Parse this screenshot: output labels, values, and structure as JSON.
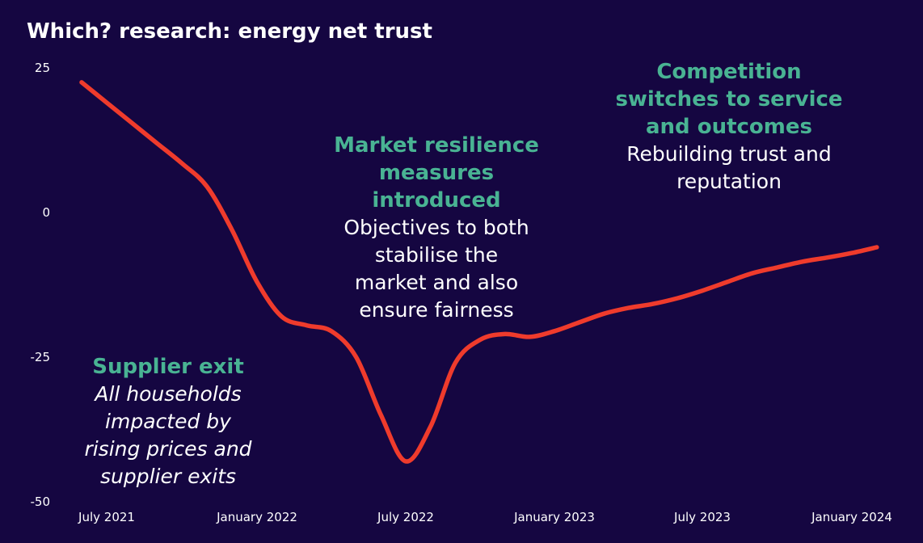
{
  "chart_data": {
    "type": "line",
    "title": "Which? research: energy net trust",
    "xlabel": "",
    "ylabel": "",
    "ylim": [
      -50,
      25
    ],
    "yticks": [
      25,
      0,
      -25,
      -50
    ],
    "xticks": [
      "July 2021",
      "January 2022",
      "July 2022",
      "January 2023",
      "July 2023",
      "January 2024"
    ],
    "grid": false,
    "series": [
      {
        "color": "#ef3b2c",
        "x": [
          "2021-06",
          "2021-07",
          "2021-08",
          "2021-09",
          "2021-10",
          "2021-11",
          "2021-12",
          "2022-01",
          "2022-02",
          "2022-03",
          "2022-04",
          "2022-05",
          "2022-06",
          "2022-07",
          "2022-08",
          "2022-09",
          "2022-10",
          "2022-11",
          "2022-12",
          "2023-01",
          "2023-02",
          "2023-03",
          "2023-04",
          "2023-05",
          "2023-06",
          "2023-07",
          "2023-08",
          "2023-09",
          "2023-10",
          "2023-11",
          "2023-12",
          "2024-01",
          "2024-02"
        ],
        "y": [
          22.5,
          19,
          15.5,
          12,
          8.5,
          4.5,
          -3,
          -12,
          -18,
          -19.5,
          -20.5,
          -25,
          -35,
          -43,
          -37,
          -26,
          -22,
          -21,
          -21.5,
          -20.5,
          -19,
          -17.5,
          -16.5,
          -15.8,
          -14.8,
          -13.5,
          -12,
          -10.5,
          -9.5,
          -8.5,
          -7.8,
          -7,
          -6
        ]
      }
    ],
    "annotations": [
      {
        "heading": [
          "Supplier exit"
        ],
        "body": [
          "All households",
          "impacted by",
          "rising prices and",
          "supplier exits"
        ],
        "body_style": "italic"
      },
      {
        "heading": [
          "Market resilience",
          "measures",
          "introduced"
        ],
        "body": [
          "Objectives to both",
          "stabilise the",
          "market and also",
          "ensure fairness"
        ],
        "body_style": "normal"
      },
      {
        "heading": [
          "Competition",
          "switches to service",
          "and outcomes"
        ],
        "body": [
          "Rebuilding trust and",
          "reputation"
        ],
        "body_style": "normal"
      }
    ],
    "colors": {
      "background": "#150641",
      "line": "#ef3b2c",
      "annotation_heading": "#49b393",
      "text": "#ffffff"
    }
  }
}
